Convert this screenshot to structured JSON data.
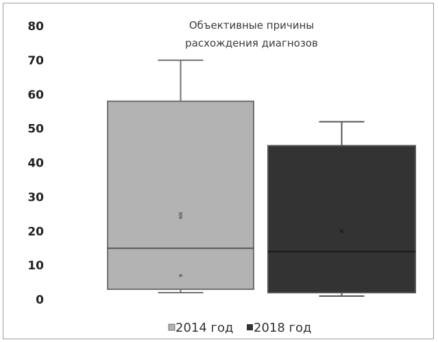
{
  "chart_data": {
    "type": "box",
    "title_lines": [
      "Объективные причины",
      "расхождения диагнозов"
    ],
    "ylim": [
      0,
      80
    ],
    "yticks": [
      0,
      10,
      20,
      30,
      40,
      50,
      60,
      70,
      80
    ],
    "grid": false,
    "legend_position": "bottom",
    "series": [
      {
        "name": "2014 год",
        "color": "#b3b3b3",
        "whisker_low": 2,
        "q1": 3,
        "median": 15,
        "q3": 58,
        "whisker_high": 70,
        "mean": 25,
        "points": [
          24,
          7
        ]
      },
      {
        "name": "2018 год",
        "color": "#333333",
        "whisker_low": 1,
        "q1": 2,
        "median": 14,
        "q3": 45,
        "whisker_high": 52,
        "mean": 20,
        "points": []
      }
    ]
  }
}
